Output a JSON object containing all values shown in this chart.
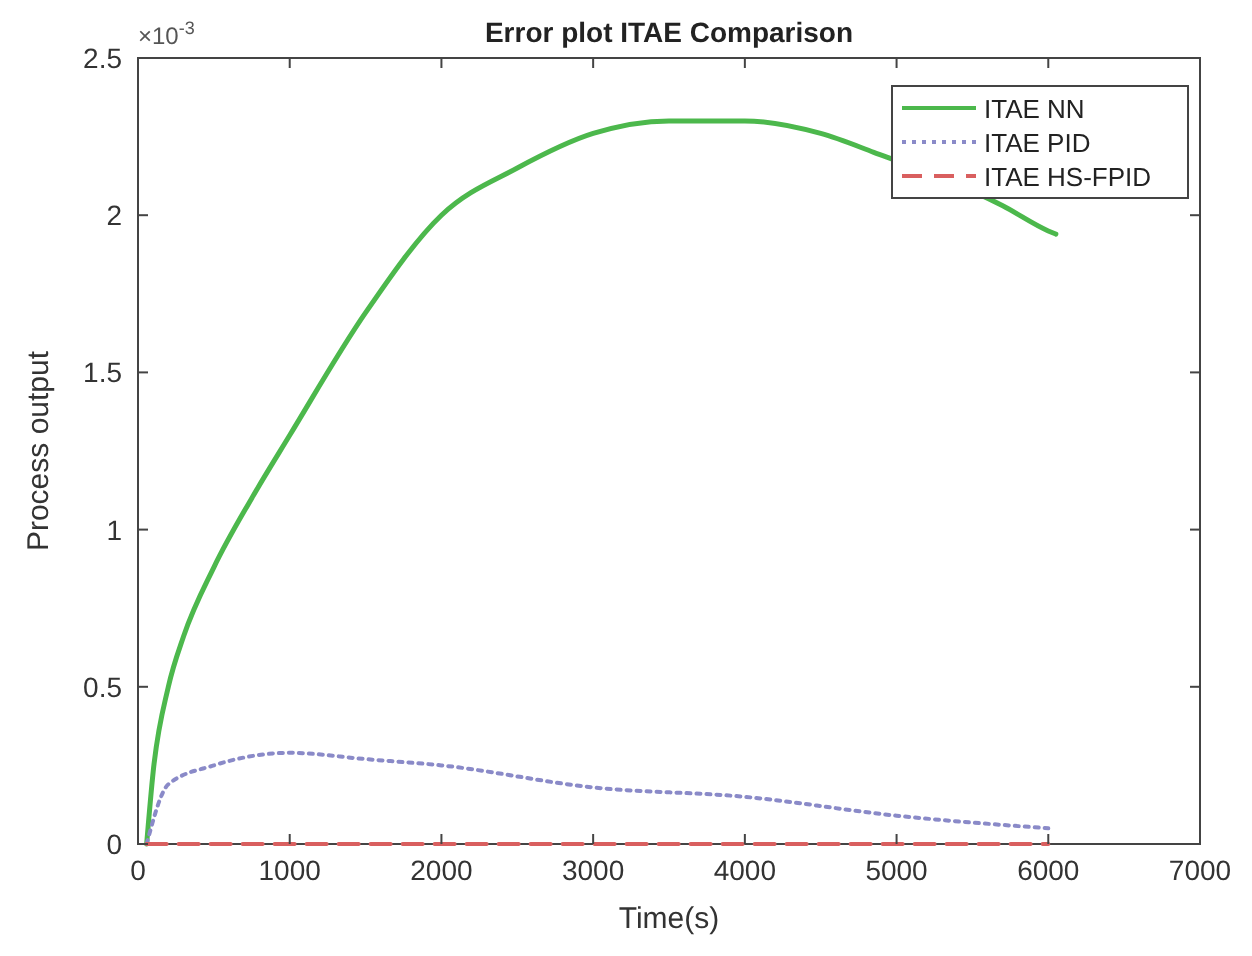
{
  "chart_data": {
    "type": "line",
    "title": "Error plot ITAE Comparison",
    "xlabel": "Time(s)",
    "ylabel": "Process output",
    "annotations": [
      "×10$^{-3}$"
    ],
    "series": [
      {
        "name": "ITAE NN",
        "color": "#4cb84c",
        "line_style": "solid",
        "x": [
          57,
          100,
          200,
          300,
          500,
          750,
          1000,
          1500,
          2000,
          2500,
          3000,
          3500,
          4000,
          4500,
          4850,
          5700,
          6000,
          6050
        ],
        "values": [
          0,
          0.23,
          0.5,
          0.66,
          0.88,
          1.1,
          1.3,
          1.69,
          2.0,
          2.15,
          2.26,
          2.3,
          2.3,
          2.26,
          2.2,
          2.03,
          1.95,
          1.94
        ]
      },
      {
        "name": "ITAE PID",
        "color": "#8a8ac8",
        "line_style": "dotted",
        "x": [
          57,
          200,
          500,
          1000,
          1500,
          2000,
          3000,
          4000,
          5000,
          6000
        ],
        "values": [
          0,
          0.19,
          0.25,
          0.29,
          0.27,
          0.25,
          0.18,
          0.15,
          0.09,
          0.05
        ]
      },
      {
        "name": "ITAE HS-FPID",
        "color": "#d95f5f",
        "line_style": "dashed",
        "x": [
          57,
          6000
        ],
        "values": [
          0,
          0
        ]
      }
    ],
    "xlim": [
      0,
      7000
    ],
    "xticks": [
      0,
      1000,
      2000,
      3000,
      4000,
      5000,
      6000,
      7000
    ],
    "ylim": [
      0,
      2.5
    ],
    "yticks": [
      0,
      0.5,
      1,
      1.5,
      2,
      2.5
    ],
    "grid": false,
    "legend": "top right"
  }
}
